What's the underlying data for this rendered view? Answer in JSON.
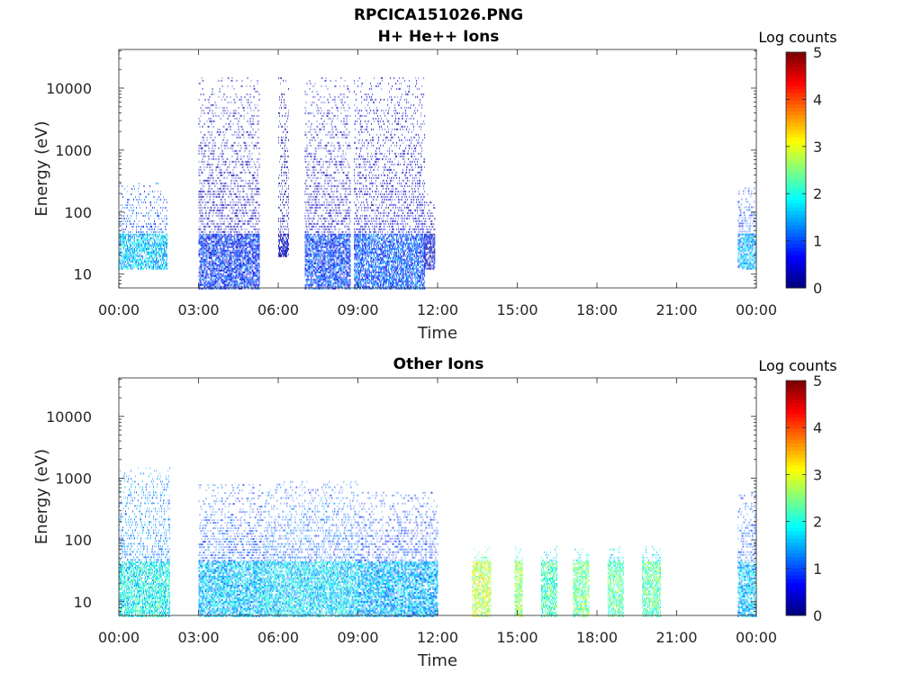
{
  "figure_title": "RPCICA151026.PNG",
  "colors": {
    "axis": "#262626",
    "background": "#ffffff"
  },
  "colormap": "jet",
  "chart_data": [
    {
      "type": "heatmap",
      "title": "H+ He++ Ions",
      "xlabel": "Time",
      "ylabel": "Energy (eV)",
      "x_tick_labels": [
        "00:00",
        "03:00",
        "06:00",
        "09:00",
        "12:00",
        "15:00",
        "18:00",
        "21:00",
        "00:00"
      ],
      "x_range_hours": [
        0,
        24
      ],
      "y_scale": "log",
      "y_range": [
        6,
        42000
      ],
      "y_tick_labels": [
        "10",
        "100",
        "1000",
        "10000"
      ],
      "y_tick_values": [
        10,
        100,
        1000,
        10000
      ],
      "colorbar": {
        "label": "Log counts",
        "range": [
          0,
          5
        ],
        "tick_labels": [
          "0",
          "1",
          "2",
          "3",
          "4",
          "5"
        ]
      },
      "activity_blocks": [
        {
          "start_h": 0.0,
          "end_h": 1.8,
          "emin": 12,
          "emax": 300,
          "level": 1.6
        },
        {
          "start_h": 3.0,
          "end_h": 5.3,
          "emin": 6,
          "emax": 15000,
          "level": 0.8
        },
        {
          "start_h": 6.0,
          "end_h": 6.4,
          "emin": 20,
          "emax": 15000,
          "level": 0.3
        },
        {
          "start_h": 7.0,
          "end_h": 8.7,
          "emin": 6,
          "emax": 15000,
          "level": 0.9
        },
        {
          "start_h": 8.85,
          "end_h": 11.5,
          "emin": 6,
          "emax": 15000,
          "level": 1.0
        },
        {
          "start_h": 11.5,
          "end_h": 11.9,
          "emin": 12,
          "emax": 200,
          "level": 0.4
        },
        {
          "start_h": 23.3,
          "end_h": 24.0,
          "emin": 12,
          "emax": 250,
          "level": 1.5
        }
      ]
    },
    {
      "type": "heatmap",
      "title": "Other Ions",
      "xlabel": "Time",
      "ylabel": "Energy (eV)",
      "x_tick_labels": [
        "00:00",
        "03:00",
        "06:00",
        "09:00",
        "12:00",
        "15:00",
        "18:00",
        "21:00",
        "00:00"
      ],
      "x_range_hours": [
        0,
        24
      ],
      "y_scale": "log",
      "y_range": [
        6,
        42000
      ],
      "y_tick_labels": [
        "10",
        "100",
        "1000",
        "10000"
      ],
      "y_tick_values": [
        10,
        100,
        1000,
        10000
      ],
      "colorbar": {
        "label": "Log counts",
        "range": [
          0,
          5
        ],
        "tick_labels": [
          "0",
          "1",
          "2",
          "3",
          "4",
          "5"
        ]
      },
      "activity_blocks": [
        {
          "start_h": 0.0,
          "end_h": 1.9,
          "emin": 6,
          "emax": 1500,
          "level": 1.9
        },
        {
          "start_h": 3.0,
          "end_h": 5.5,
          "emin": 6,
          "emax": 800,
          "level": 1.6
        },
        {
          "start_h": 5.5,
          "end_h": 9.0,
          "emin": 6,
          "emax": 900,
          "level": 1.7
        },
        {
          "start_h": 9.0,
          "end_h": 12.0,
          "emin": 6,
          "emax": 600,
          "level": 1.5
        },
        {
          "start_h": 13.3,
          "end_h": 14.0,
          "emin": 6,
          "emax": 80,
          "level": 2.8
        },
        {
          "start_h": 14.9,
          "end_h": 15.2,
          "emin": 6,
          "emax": 80,
          "level": 2.6
        },
        {
          "start_h": 15.9,
          "end_h": 16.5,
          "emin": 6,
          "emax": 80,
          "level": 2.2
        },
        {
          "start_h": 17.1,
          "end_h": 17.7,
          "emin": 6,
          "emax": 80,
          "level": 2.4
        },
        {
          "start_h": 18.4,
          "end_h": 19.0,
          "emin": 6,
          "emax": 80,
          "level": 2.3
        },
        {
          "start_h": 19.7,
          "end_h": 20.4,
          "emin": 6,
          "emax": 80,
          "level": 2.3
        },
        {
          "start_h": 23.3,
          "end_h": 24.0,
          "emin": 6,
          "emax": 600,
          "level": 1.6
        }
      ]
    }
  ]
}
